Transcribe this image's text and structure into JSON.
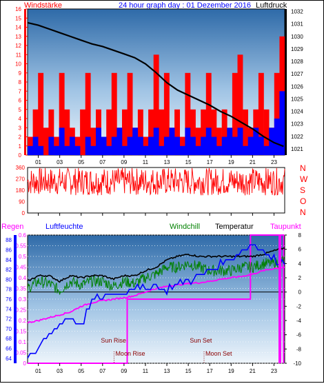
{
  "header": {
    "left_label": "Windstärke",
    "title": "24 hour graph day : 01 Dezember 2016",
    "right_label": "Luftdruck"
  },
  "colors": {
    "red": "#ff0000",
    "blue": "#0000ff",
    "black": "#000000",
    "green": "#008000",
    "magenta": "#ff00ff",
    "plot_top": "#2e6aa8",
    "plot_bottom": "#eef5fb"
  },
  "hour_ticks": [
    "01",
    "03",
    "05",
    "07",
    "09",
    "11",
    "13",
    "15",
    "17",
    "19",
    "21",
    "23"
  ],
  "chart_data": [
    {
      "type": "bar",
      "name": "wind",
      "left_axis": {
        "label": "Windstärke",
        "ticks": [
          0,
          1,
          2,
          3,
          4,
          5,
          6,
          7,
          8,
          9,
          10,
          11,
          12,
          13,
          14,
          15,
          16
        ],
        "range": [
          0,
          16
        ]
      },
      "right_axis": {
        "label": "Luftdruck",
        "ticks": [
          1021,
          1022,
          1023,
          1024,
          1025,
          1026,
          1027,
          1028,
          1029,
          1030,
          1031,
          1032
        ],
        "range": [
          1020.5,
          1032.2
        ]
      },
      "x_range": [
        0,
        24
      ],
      "series": [
        {
          "color": "red",
          "style": "bars",
          "description_level": [
            2,
            5,
            9,
            3,
            5,
            2,
            9,
            5,
            3,
            2,
            5,
            9,
            3,
            5,
            2,
            5,
            9,
            3,
            5,
            9,
            3,
            5,
            2,
            5,
            11,
            5,
            9,
            3,
            5,
            2,
            9,
            5,
            3,
            5,
            9,
            5,
            3,
            5,
            2,
            9,
            11,
            5,
            3,
            5,
            9,
            5,
            3,
            9,
            13
          ]
        },
        {
          "color": "blue",
          "style": "bars",
          "description_level": [
            1,
            2,
            1,
            0,
            2,
            1,
            3,
            1,
            2,
            1,
            0,
            2,
            1,
            3,
            2,
            1,
            2,
            3,
            1,
            2,
            3,
            2,
            1,
            2,
            3,
            1,
            2,
            3,
            2,
            1,
            3,
            2,
            1,
            2,
            3,
            2,
            1,
            2,
            3,
            2,
            3,
            1,
            2,
            3,
            2,
            1,
            3,
            4,
            7
          ]
        },
        {
          "color": "black",
          "style": "line",
          "x": [
            0,
            1,
            2,
            3,
            4,
            5,
            6,
            7,
            8,
            9,
            10,
            11,
            12,
            13,
            14,
            15,
            16,
            17,
            18,
            19,
            20,
            21,
            22,
            23,
            23.9
          ],
          "y": [
            1031.1,
            1030.9,
            1030.6,
            1030.3,
            1030.0,
            1029.7,
            1029.4,
            1029.2,
            1028.9,
            1028.6,
            1028.3,
            1027.8,
            1027.1,
            1026.3,
            1025.7,
            1025.3,
            1024.9,
            1024.5,
            1024.0,
            1023.6,
            1023.1,
            1022.6,
            1022.0,
            1021.5,
            1021.2
          ]
        }
      ]
    },
    {
      "type": "line",
      "name": "wind-direction",
      "left_axis": {
        "ticks": [
          0,
          90,
          180,
          270,
          360
        ],
        "range": [
          0,
          360
        ]
      },
      "right_labels": [
        "N",
        "W",
        "S",
        "O",
        "N"
      ],
      "series": [
        {
          "color": "red",
          "style": "noisy-line",
          "mean": 250,
          "spread": 110
        }
      ]
    },
    {
      "type": "line",
      "name": "weather",
      "legend": [
        "Regen",
        "Luftfeuchte",
        "Windchill",
        "Temperatur",
        "Taupunkt"
      ],
      "rain_axis": {
        "ticks": [
          "0",
          "0.05",
          "0.1",
          "0.15",
          "0.2",
          "0.25",
          "0.3",
          "0.35",
          "0.4",
          "0.45",
          "0.5",
          "0.55",
          "0.6"
        ],
        "range": [
          0,
          0.6
        ]
      },
      "humidity_axis": {
        "ticks": [
          64,
          66,
          68,
          70,
          72,
          74,
          76,
          78,
          80,
          82,
          84,
          86,
          88
        ],
        "range": [
          63,
          89
        ]
      },
      "temp_axis": {
        "ticks": [
          8,
          6,
          4,
          2,
          0,
          -2,
          -4,
          -6,
          -8,
          -10
        ],
        "range": [
          -10,
          8
        ]
      },
      "annotations": [
        {
          "text": "Sun Rise",
          "hour": 8.0
        },
        {
          "text": "Moon Rise",
          "hour": 8.2
        },
        {
          "text": "Sun Set",
          "hour": 16.3
        },
        {
          "text": "Moon Set",
          "hour": 16.6
        }
      ],
      "series": [
        {
          "name": "Temperatur",
          "color": "black",
          "x": [
            0,
            1,
            2,
            3,
            4,
            5,
            6,
            7,
            8,
            9,
            10,
            11,
            12,
            13,
            14,
            15,
            16,
            17,
            18,
            19,
            20,
            21,
            22,
            23,
            24
          ],
          "y": [
            1.5,
            2.3,
            2.3,
            1.5,
            2.3,
            2.0,
            2.3,
            2.3,
            1.8,
            2.3,
            2.3,
            3.0,
            3.5,
            4.5,
            5.0,
            5.3,
            5.0,
            5.0,
            5.0,
            5.0,
            5.0,
            5.0,
            5.3,
            5.8,
            6.2
          ]
        },
        {
          "name": "Windchill",
          "color": "green",
          "x": [
            0,
            1,
            2,
            3,
            4,
            5,
            6,
            7,
            8,
            9,
            10,
            11,
            12,
            13,
            14,
            15,
            16,
            17,
            18,
            19,
            20,
            21,
            22,
            23,
            24
          ],
          "y": [
            0.5,
            1.5,
            1.2,
            0.2,
            1.5,
            1.0,
            1.5,
            1.5,
            0.8,
            1.5,
            1.2,
            2.0,
            2.5,
            3.5,
            3.5,
            4.0,
            3.5,
            3.0,
            3.0,
            3.0,
            3.5,
            3.5,
            4.0,
            4.0,
            4.5
          ]
        },
        {
          "name": "Taupunkt",
          "color": "magenta",
          "x": [
            0,
            1,
            2,
            3,
            4,
            5,
            6,
            7,
            8,
            9,
            10,
            11,
            12,
            13,
            14,
            15,
            16,
            17,
            18,
            19,
            20,
            21,
            22,
            23,
            24
          ],
          "y": [
            -4.3,
            -4.0,
            -3.6,
            -3.2,
            -2.8,
            -2.0,
            -1.5,
            -1.2,
            -1.0,
            -0.8,
            -0.5,
            0.0,
            0.5,
            0.8,
            1.0,
            1.2,
            1.3,
            1.5,
            1.8,
            2.0,
            2.2,
            2.5,
            3.0,
            3.3,
            3.5
          ]
        },
        {
          "name": "Luftfeuchte",
          "color": "blue",
          "x": [
            0,
            1,
            2,
            3,
            4,
            5,
            6,
            7,
            8,
            9,
            10,
            11,
            12,
            13,
            14,
            15,
            16,
            17,
            18,
            19,
            20,
            21,
            22,
            23,
            24
          ],
          "y": [
            63.5,
            66,
            69,
            71,
            72.5,
            70,
            76,
            76.5,
            77,
            77.5,
            78,
            78,
            78.5,
            78,
            79,
            79.5,
            81,
            82,
            83,
            84,
            86,
            87,
            86,
            84,
            83
          ]
        },
        {
          "name": "Regen",
          "color": "magenta",
          "x": [
            0,
            9.3,
            9.3,
            20.8,
            20.8,
            23.9,
            23.9
          ],
          "y": [
            0,
            0,
            0.3,
            0.3,
            0.6,
            0.6,
            0
          ]
        }
      ]
    }
  ]
}
